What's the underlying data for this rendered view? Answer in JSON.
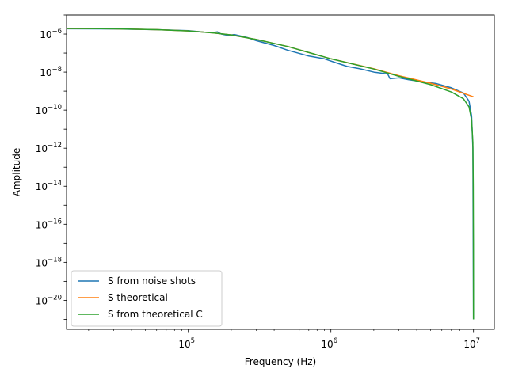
{
  "chart_data": {
    "type": "line",
    "xlabel": "Frequency (Hz)",
    "ylabel": "Amplitude",
    "xscale": "log",
    "yscale": "log",
    "xlim": [
      14000,
      14000000
    ],
    "ylim": [
      3e-22,
      1e-05
    ],
    "x_tick_values": [
      100000,
      1000000,
      10000000
    ],
    "x_tick_labels": [
      {
        "base": "10",
        "exp": "5"
      },
      {
        "base": "10",
        "exp": "6"
      },
      {
        "base": "10",
        "exp": "7"
      }
    ],
    "y_tick_values": [
      1e-20,
      1e-18,
      1e-16,
      1e-14,
      1e-12,
      1e-10,
      1e-08,
      1e-06
    ],
    "y_tick_labels": [
      {
        "base": "10",
        "exp": "−20"
      },
      {
        "base": "10",
        "exp": "−18"
      },
      {
        "base": "10",
        "exp": "−16"
      },
      {
        "base": "10",
        "exp": "−14"
      },
      {
        "base": "10",
        "exp": "−12"
      },
      {
        "base": "10",
        "exp": "−10"
      },
      {
        "base": "10",
        "exp": "−8"
      },
      {
        "base": "10",
        "exp": "−6"
      }
    ],
    "grid": false,
    "legend_position": "lower-left",
    "series": [
      {
        "name": "S from noise shots",
        "color": "#1f77b4",
        "x": [
          14000,
          30000,
          60000,
          100000,
          130000,
          150000,
          160000,
          170000,
          190000,
          210000,
          260000,
          300000,
          400000,
          500000,
          700000,
          900000,
          1100000,
          1300000,
          1600000,
          2000000,
          2500000,
          2600000,
          3000000,
          3500000,
          4500000,
          5500000,
          7000000,
          8500000,
          9300000,
          9700000,
          9900000,
          10000000
        ],
        "y": [
          1.9e-06,
          1.85e-06,
          1.7e-06,
          1.5e-06,
          1.25e-06,
          1.2e-06,
          1.3e-06,
          1e-06,
          8.5e-07,
          9.5e-07,
          6.5e-07,
          4.5e-07,
          2.5e-07,
          1.4e-07,
          7e-08,
          5e-08,
          3e-08,
          2e-08,
          1.5e-08,
          1e-08,
          8e-09,
          4.5e-09,
          5e-09,
          4e-09,
          3e-09,
          2.5e-09,
          1.5e-09,
          8e-10,
          3e-10,
          5e-11,
          1e-12,
          1e-21
        ]
      },
      {
        "name": "S theoretical",
        "color": "#ff7f0e",
        "x": [
          14000,
          30000,
          60000,
          100000,
          150000,
          200000,
          300000,
          500000,
          1000000,
          2000000,
          3000000,
          5000000,
          7000000,
          10000000
        ],
        "y": [
          1.95e-06,
          1.9e-06,
          1.7e-06,
          1.45e-06,
          1.15e-06,
          9e-07,
          5.2e-07,
          2.2e-07,
          5e-08,
          1.5e-08,
          6.5e-09,
          2.6e-09,
          1.3e-09,
          5e-10
        ]
      },
      {
        "name": "S from theoretical C",
        "color": "#2ca02c",
        "x": [
          14000,
          30000,
          60000,
          100000,
          150000,
          200000,
          300000,
          500000,
          1000000,
          2000000,
          3000000,
          5000000,
          7000000,
          8500000,
          9300000,
          9700000,
          9900000,
          9960000,
          9990000,
          10000000
        ],
        "y": [
          1.95e-06,
          1.9e-06,
          1.7e-06,
          1.45e-06,
          1.15e-06,
          9e-07,
          5.2e-07,
          2.2e-07,
          5e-08,
          1.45e-08,
          6e-09,
          2.2e-09,
          9e-10,
          4e-10,
          1.5e-10,
          3e-11,
          2e-12,
          1e-14,
          1e-17,
          1e-21
        ]
      }
    ]
  }
}
